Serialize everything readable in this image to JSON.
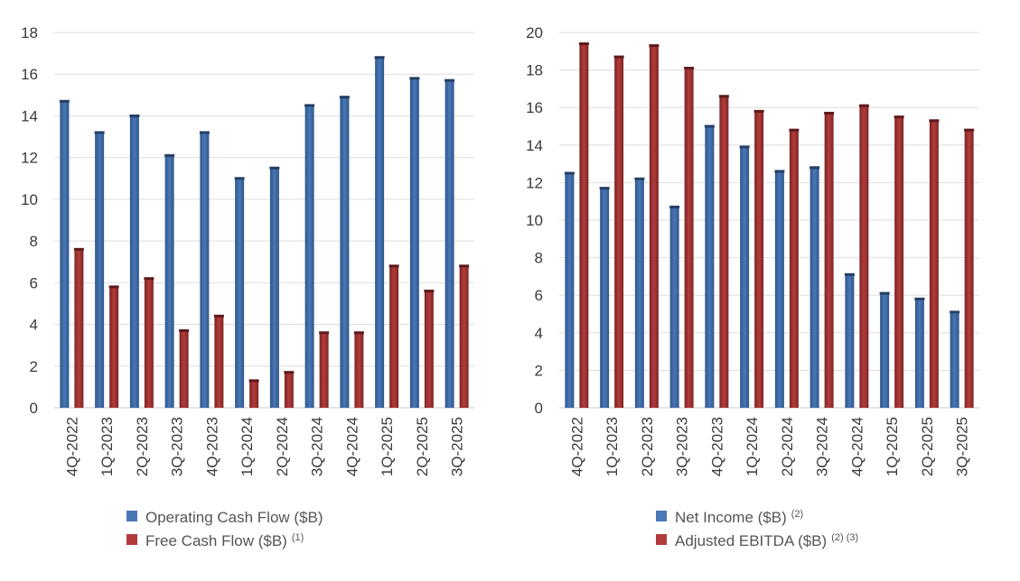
{
  "chart_data": [
    {
      "type": "bar",
      "categories": [
        "4Q-2022",
        "1Q-2023",
        "2Q-2023",
        "3Q-2023",
        "4Q-2023",
        "1Q-2024",
        "2Q-2024",
        "3Q-2024",
        "4Q-2024",
        "1Q-2025",
        "2Q-2025",
        "3Q-2025"
      ],
      "series": [
        {
          "name": "Operating Cash Flow ($B)",
          "footnote": "",
          "color": "#3f6aa8",
          "values": [
            14.7,
            13.2,
            14.0,
            12.1,
            13.2,
            11.0,
            11.5,
            14.5,
            14.9,
            16.8,
            15.8,
            15.7
          ]
        },
        {
          "name": "Free Cash Flow ($B)",
          "footnote": "(1)",
          "color": "#9e3233",
          "values": [
            7.6,
            5.8,
            6.2,
            3.7,
            4.4,
            1.3,
            1.7,
            3.6,
            3.6,
            6.8,
            5.6,
            6.8
          ]
        }
      ],
      "ylim": [
        0,
        18
      ],
      "yticks": [
        0,
        2,
        4,
        6,
        8,
        10,
        12,
        14,
        16,
        18
      ],
      "title": "",
      "xlabel": "",
      "ylabel": "",
      "legend": "bottom"
    },
    {
      "type": "bar",
      "categories": [
        "4Q-2022",
        "1Q-2023",
        "2Q-2023",
        "3Q-2023",
        "4Q-2023",
        "1Q-2024",
        "2Q-2024",
        "3Q-2024",
        "4Q-2024",
        "1Q-2025",
        "2Q-2025",
        "3Q-2025"
      ],
      "series": [
        {
          "name": "Net Income ($B)",
          "footnote": "(2)",
          "color": "#3f6aa8",
          "values": [
            12.5,
            11.7,
            12.2,
            10.7,
            15.0,
            13.9,
            12.6,
            12.8,
            7.1,
            6.1,
            5.8,
            5.1
          ]
        },
        {
          "name": "Adjusted EBITDA ($B)",
          "footnote": "(2) (3)",
          "color": "#9e3233",
          "values": [
            19.4,
            18.7,
            19.3,
            18.1,
            16.6,
            15.8,
            14.8,
            15.7,
            16.1,
            15.5,
            15.3,
            14.8
          ]
        }
      ],
      "ylim": [
        0,
        20
      ],
      "yticks": [
        0,
        2,
        4,
        6,
        8,
        10,
        12,
        14,
        16,
        18,
        20
      ],
      "title": "",
      "xlabel": "",
      "ylabel": "",
      "legend": "bottom"
    }
  ]
}
